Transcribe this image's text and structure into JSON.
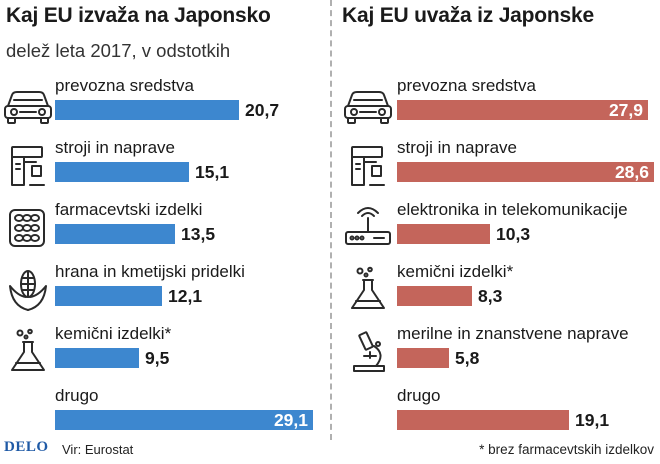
{
  "left_panel": {
    "title": "Kaj EU izvaža na Japonsko",
    "subtitle": "delež leta 2017, v odstotkih"
  },
  "right_panel": {
    "title": "Kaj EU uvaža iz Japonske"
  },
  "footer": {
    "logo": "DELO",
    "source": "Vir: Eurostat",
    "footnote": "* brez farmacevtskih izdelkov"
  },
  "chart_data": [
    {
      "type": "bar",
      "orientation": "horizontal",
      "title": "Kaj EU izvaža na Japonsko",
      "subtitle": "delež leta 2017, v odstotkih",
      "color": "#3d87cf",
      "xlim": [
        0,
        29.1
      ],
      "categories": [
        "prevozna sredstva",
        "stroji in naprave",
        "farmacevtski izdelki",
        "hrana in kmetijski pridelki",
        "kemični izdelki*",
        "drugo"
      ],
      "values": [
        20.7,
        15.1,
        13.5,
        12.1,
        9.5,
        29.1
      ],
      "value_labels": [
        "20,7",
        "15,1",
        "13,5",
        "12,1",
        "9,5",
        "29,1"
      ],
      "icons": [
        "car-icon",
        "machine-icon",
        "pills-icon",
        "corn-icon",
        "flask-icon",
        ""
      ]
    },
    {
      "type": "bar",
      "orientation": "horizontal",
      "title": "Kaj EU uvaža iz Japonske",
      "color": "#c4655b",
      "xlim": [
        0,
        28.6
      ],
      "categories": [
        "prevozna sredstva",
        "stroji in naprave",
        "elektronika in telekomunikacije",
        "kemični izdelki*",
        "merilne in znanstvene naprave",
        "drugo"
      ],
      "values": [
        27.9,
        28.6,
        10.3,
        8.3,
        5.8,
        19.1
      ],
      "value_labels": [
        "27,9",
        "28,6",
        "10,3",
        "8,3",
        "5,8",
        "19,1"
      ],
      "icons": [
        "car-icon",
        "machine-icon",
        "router-icon",
        "flask-icon",
        "microscope-icon",
        ""
      ]
    }
  ]
}
